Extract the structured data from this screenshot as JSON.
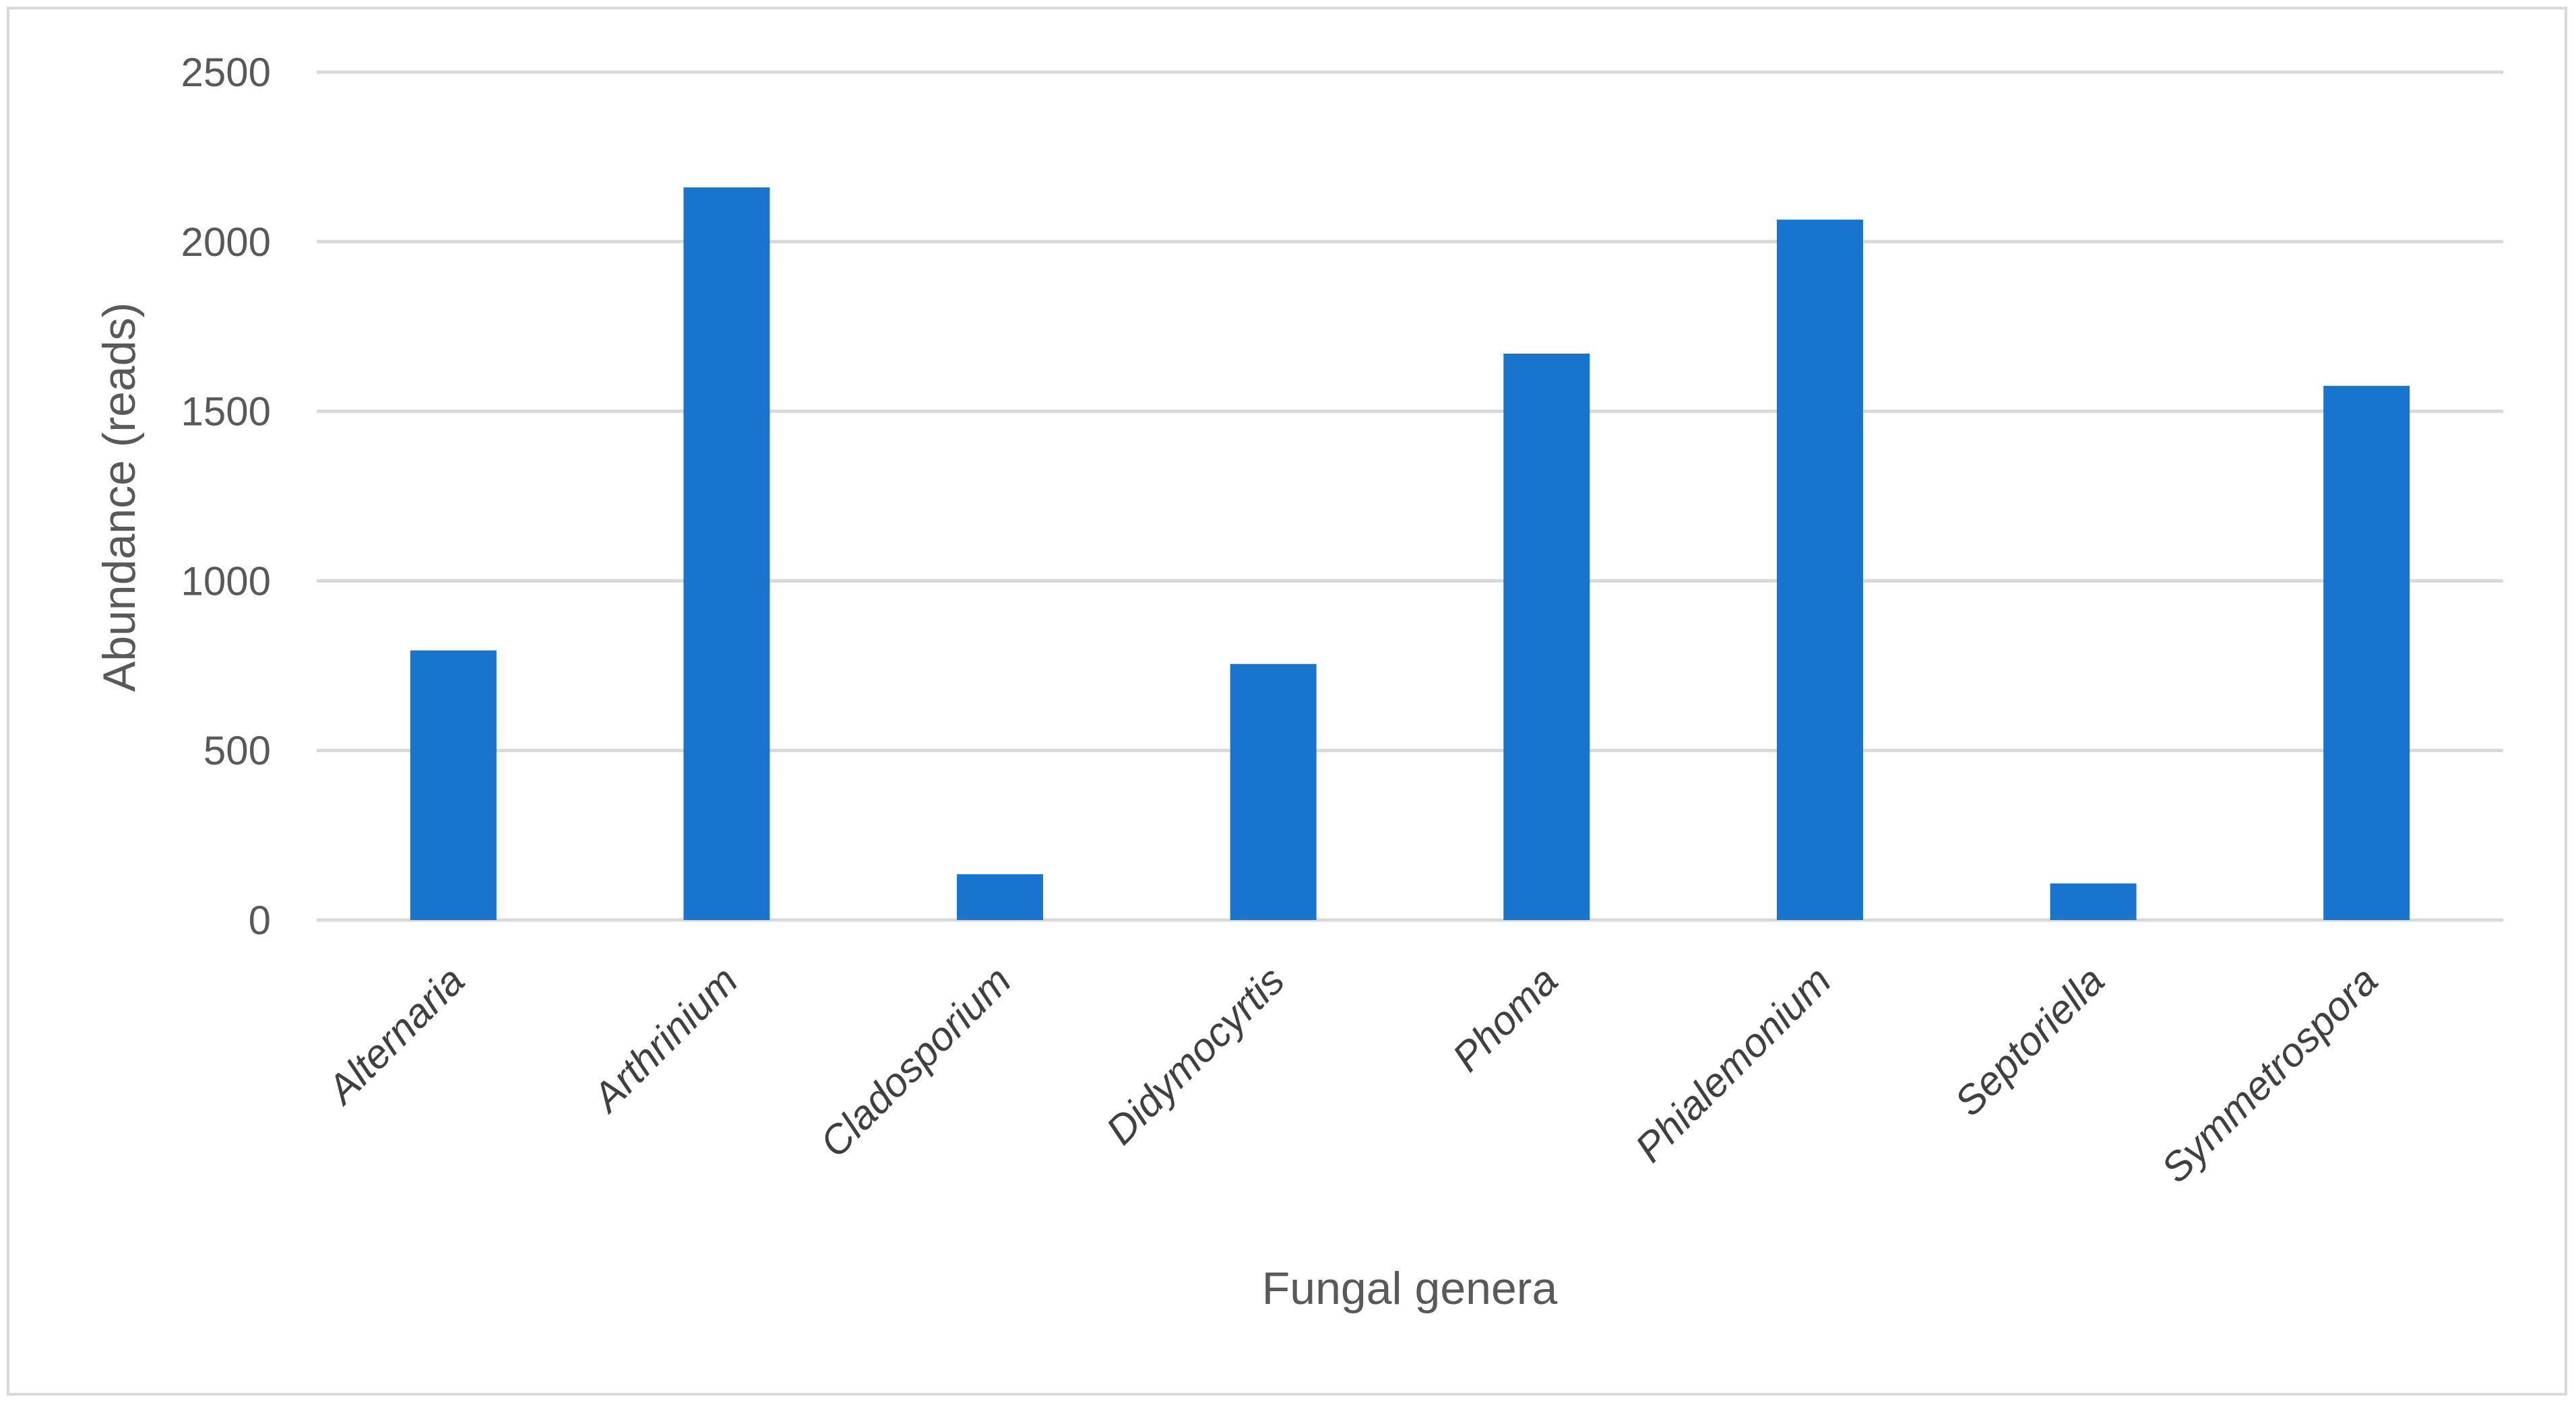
{
  "chart_data": {
    "type": "bar",
    "title": "",
    "xlabel": "Fungal genera",
    "ylabel": "Abundance (reads)",
    "categories": [
      "Alternaria",
      "Arthrinium",
      "Cladosporium",
      "Didymocyrtis",
      "Phoma",
      "Phialemonium",
      "Septoriella",
      "Symmetrospora"
    ],
    "values": [
      795,
      2160,
      135,
      755,
      1670,
      2065,
      108,
      1575
    ],
    "ylim": [
      0,
      2500
    ],
    "yticks": [
      0,
      500,
      1000,
      1500,
      2000,
      2500
    ],
    "grid": true,
    "legend": "none",
    "bar_color": "#1874CD",
    "category_label_style": "italic, rotated"
  }
}
